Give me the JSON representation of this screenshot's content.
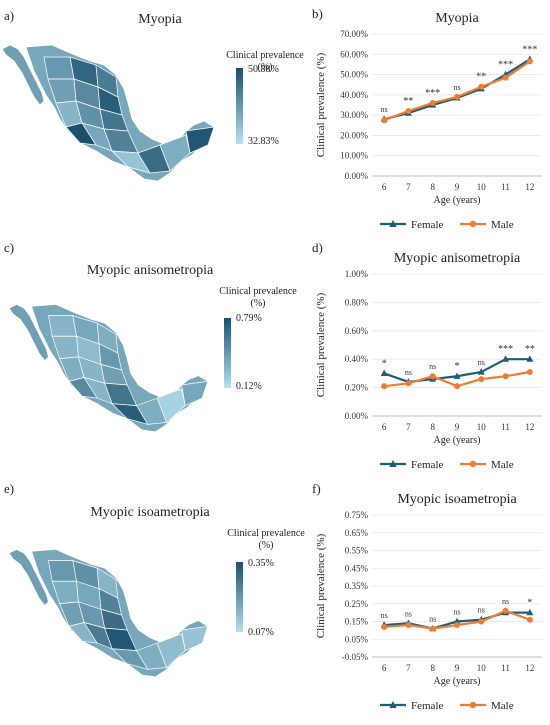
{
  "panels": {
    "a": "a)",
    "b": "b)",
    "c": "c)",
    "d": "d)",
    "e": "e)",
    "f": "f)"
  },
  "maps": [
    {
      "title": "Myopia",
      "legend_title": "Clinical prevalence (%)",
      "legend_max": "50.88%",
      "legend_min": "32.83%",
      "color_dark": "#1b4f6b",
      "color_light": "#b5e1ef"
    },
    {
      "title": "Myopic anisometropia",
      "legend_title": "Clinical prevalence (%)",
      "legend_max": "0.79%",
      "legend_min": "0.12%",
      "color_dark": "#1b4f6b",
      "color_light": "#b5e1ef"
    },
    {
      "title": "Myopic isoametropia",
      "legend_title": "Clinical prevalence (%)",
      "legend_max": "0.35%",
      "legend_min": "0.07%",
      "color_dark": "#1b4f6b",
      "color_light": "#b5e1ef"
    }
  ],
  "chart_data": [
    {
      "type": "line",
      "title": "Myopia",
      "xlabel": "Age (years)",
      "ylabel": "Clinical prevalence (%)",
      "categories": [
        "6",
        "7",
        "8",
        "9",
        "10",
        "11",
        "12"
      ],
      "yticks": [
        "0.00%",
        "10.00%",
        "20.00%",
        "30.00%",
        "40.00%",
        "50.00%",
        "60.00%",
        "70.00%"
      ],
      "ylim": [
        0,
        70
      ],
      "series": [
        {
          "name": "Female",
          "color": "#1f5c7a",
          "marker": "triangle",
          "values": [
            28,
            31,
            35,
            38.5,
            43,
            50,
            57.5
          ]
        },
        {
          "name": "Male",
          "color": "#ed7d31",
          "marker": "circle",
          "values": [
            27.5,
            32,
            36,
            39,
            44,
            48.5,
            56.5
          ]
        }
      ],
      "annotations": [
        "ns",
        "**",
        "***",
        "ns",
        "**",
        "***",
        "***"
      ],
      "legend_position": "bottom"
    },
    {
      "type": "line",
      "title": "Myopic anisometropia",
      "xlabel": "Age (years)",
      "ylabel": "Clinical prevalence (%)",
      "categories": [
        "6",
        "7",
        "8",
        "9",
        "10",
        "11",
        "12"
      ],
      "yticks": [
        "0.00%",
        "0.20%",
        "0.40%",
        "0.60%",
        "0.80%",
        "1.00%"
      ],
      "ylim": [
        0,
        1.0
      ],
      "series": [
        {
          "name": "Female",
          "color": "#1f5c7a",
          "marker": "triangle",
          "values": [
            0.3,
            0.24,
            0.26,
            0.28,
            0.31,
            0.4,
            0.4
          ]
        },
        {
          "name": "Male",
          "color": "#ed7d31",
          "marker": "circle",
          "values": [
            0.21,
            0.23,
            0.28,
            0.21,
            0.26,
            0.28,
            0.31
          ]
        }
      ],
      "annotations": [
        "*",
        "ns",
        "ns",
        "*",
        "ns",
        "***",
        "**"
      ],
      "legend_position": "bottom"
    },
    {
      "type": "line",
      "title": "Myopic isoametropia",
      "xlabel": "Age (years)",
      "ylabel": "Clinical prevalence (%)",
      "categories": [
        "6",
        "7",
        "8",
        "9",
        "10",
        "11",
        "12"
      ],
      "yticks": [
        "-0.05%",
        "0.05%",
        "0.15%",
        "0.25%",
        "0.35%",
        "0.45%",
        "0.55%",
        "0.65%",
        "0.75%"
      ],
      "ylim": [
        -0.05,
        0.75
      ],
      "series": [
        {
          "name": "Female",
          "color": "#1f5c7a",
          "marker": "triangle",
          "values": [
            0.13,
            0.14,
            0.11,
            0.15,
            0.16,
            0.2,
            0.2
          ]
        },
        {
          "name": "Male",
          "color": "#ed7d31",
          "marker": "circle",
          "values": [
            0.12,
            0.13,
            0.11,
            0.13,
            0.15,
            0.21,
            0.16
          ]
        }
      ],
      "annotations": [
        "ns",
        "ns",
        "ns",
        "ns",
        "ns",
        "ns",
        "*"
      ],
      "legend_position": "bottom"
    }
  ]
}
